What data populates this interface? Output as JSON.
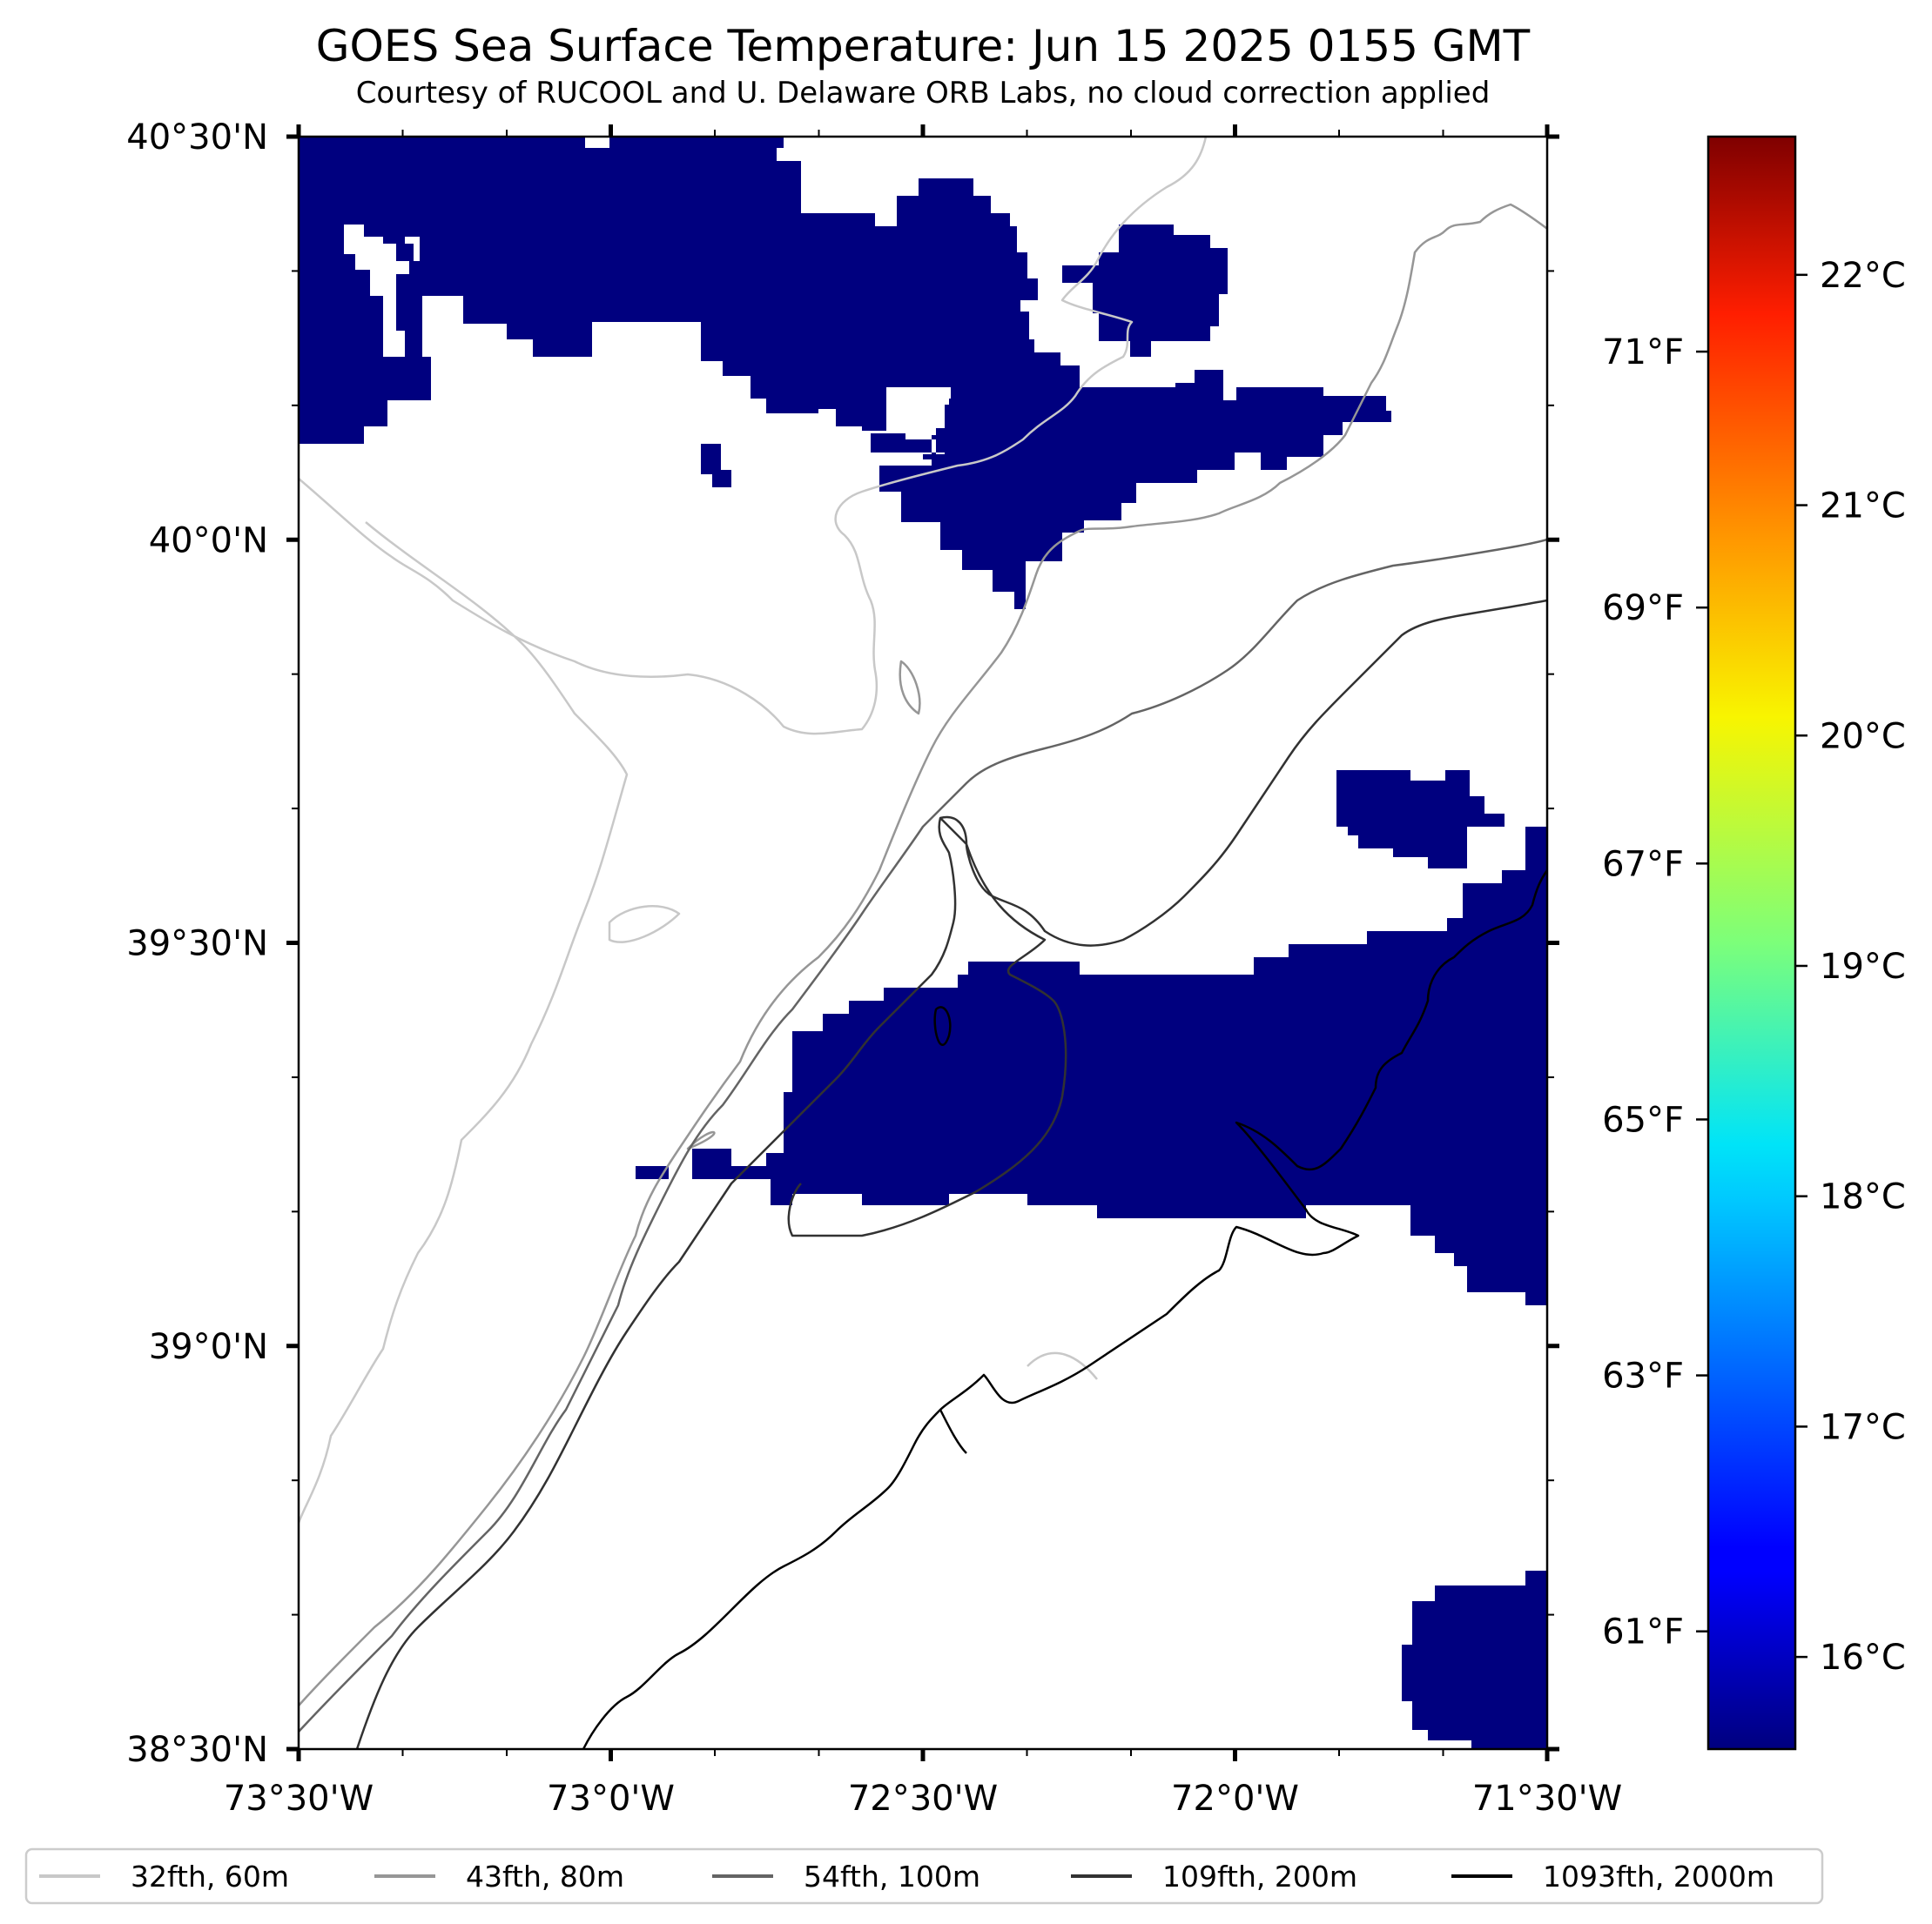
{
  "title": "GOES Sea Surface Temperature: Jun 15 2025 0155 GMT",
  "subtitle": "Courtesy of RUCOOL and U. Delaware ORB Labs, no cloud correction applied",
  "map": {
    "lon_range": [
      -73.5,
      -71.5
    ],
    "lat_range": [
      38.5,
      40.5
    ],
    "lon_ticks": [
      {
        "value": -73.5,
        "label": "73°30'W"
      },
      {
        "value": -73.0,
        "label": "73°0'W"
      },
      {
        "value": -72.5,
        "label": "72°30'W"
      },
      {
        "value": -72.0,
        "label": "72°0'W"
      },
      {
        "value": -71.5,
        "label": "71°30'W"
      }
    ],
    "lat_ticks": [
      {
        "value": 40.5,
        "label": "40°30'N"
      },
      {
        "value": 40.0,
        "label": "40°0'N"
      },
      {
        "value": 39.5,
        "label": "39°30'N"
      },
      {
        "value": 39.0,
        "label": "39°0'N"
      },
      {
        "value": 38.5,
        "label": "38°30'N"
      }
    ],
    "sst_fill_color": "#00007f"
  },
  "colorbar": {
    "colormap": "jet",
    "celsius_range": [
      15.6,
      22.6
    ],
    "celsius_ticks": [
      {
        "value": 16,
        "label": "16°C"
      },
      {
        "value": 17,
        "label": "17°C"
      },
      {
        "value": 18,
        "label": "18°C"
      },
      {
        "value": 19,
        "label": "19°C"
      },
      {
        "value": 20,
        "label": "20°C"
      },
      {
        "value": 21,
        "label": "21°C"
      },
      {
        "value": 22,
        "label": "22°C"
      }
    ],
    "fahrenheit_ticks": [
      {
        "value": 61,
        "label": "61°F"
      },
      {
        "value": 63,
        "label": "63°F"
      },
      {
        "value": 65,
        "label": "65°F"
      },
      {
        "value": 67,
        "label": "67°F"
      },
      {
        "value": 69,
        "label": "69°F"
      },
      {
        "value": 71,
        "label": "71°F"
      }
    ]
  },
  "legend": {
    "items": [
      {
        "label": "32fth, 60m",
        "color": "#c8c8c8"
      },
      {
        "label": "43fth, 80m",
        "color": "#969696"
      },
      {
        "label": "54fth, 100m",
        "color": "#646464"
      },
      {
        "label": "109fth, 200m",
        "color": "#323232"
      },
      {
        "label": "1093fth, 2000m",
        "color": "#000000"
      }
    ]
  }
}
